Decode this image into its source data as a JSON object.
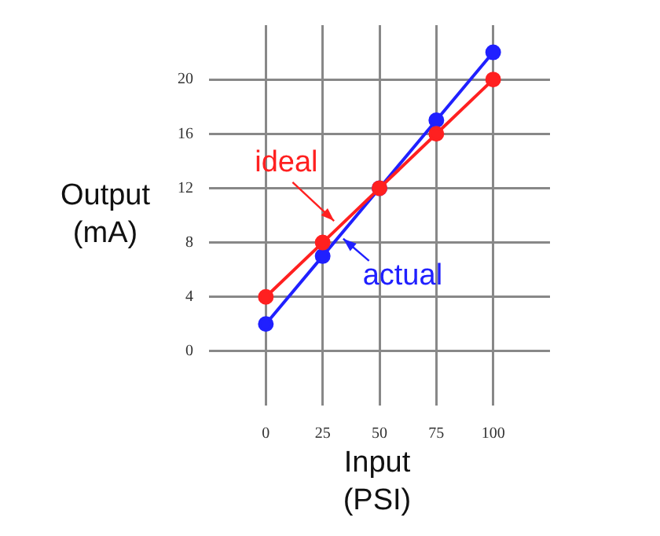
{
  "chart_data": {
    "type": "line",
    "xlabel": "Input (PSI)",
    "ylabel": "Output (mA)",
    "x": [
      0,
      25,
      50,
      75,
      100
    ],
    "series": [
      {
        "name": "ideal",
        "color": "#ff2020",
        "values": [
          4,
          8,
          12,
          16,
          20
        ]
      },
      {
        "name": "actual",
        "color": "#2020ff",
        "values": [
          2,
          7,
          12,
          17,
          22
        ]
      }
    ],
    "xlim": [
      -25,
      125
    ],
    "xticks": [
      0,
      25,
      50,
      75,
      100
    ],
    "ylim": [
      -4,
      24
    ],
    "yticks": [
      0,
      4,
      8,
      12,
      16,
      20
    ],
    "grid": true,
    "marker": "circle",
    "line_style": "solid"
  }
}
